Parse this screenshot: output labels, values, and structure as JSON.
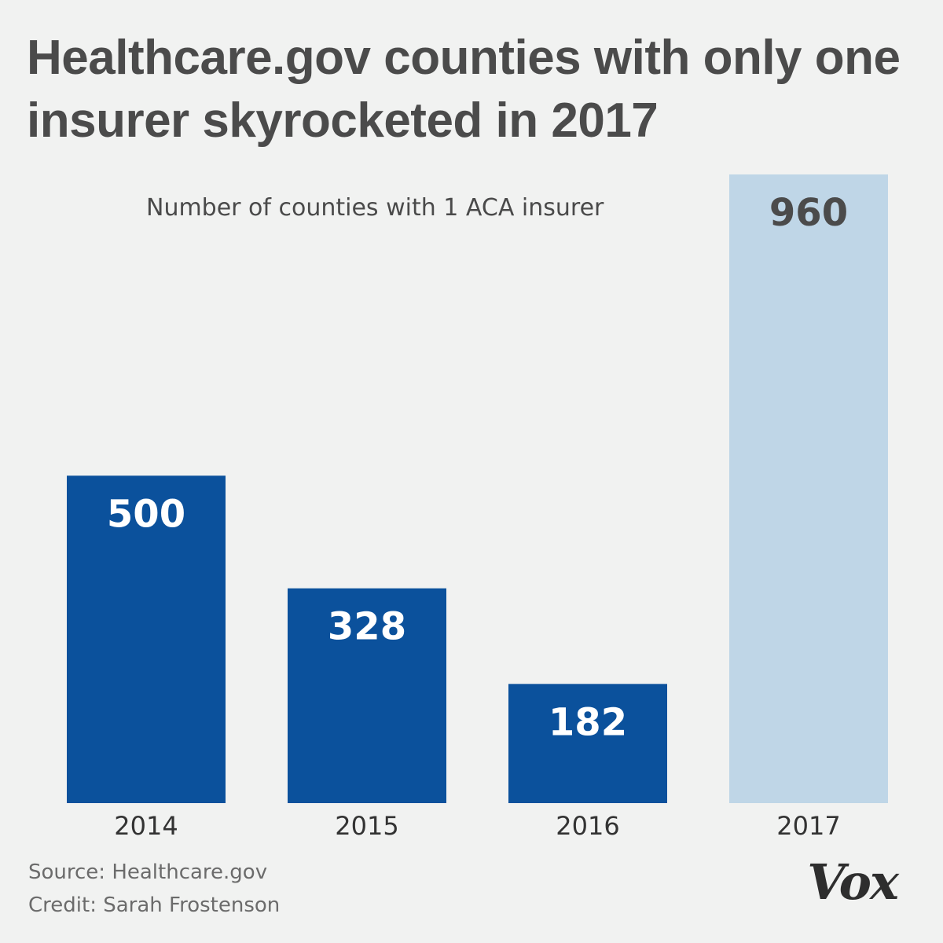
{
  "chart_data": {
    "type": "bar",
    "title": "Healthcare.gov counties with only one insurer skyrocketed in 2017",
    "subtitle": "Number of counties with 1 ACA insurer",
    "categories": [
      "2014",
      "2015",
      "2016",
      "2017"
    ],
    "values": [
      500,
      328,
      182,
      960
    ],
    "colors": [
      "#0b519c",
      "#0b519c",
      "#0b519c",
      "#bfd6e7"
    ],
    "label_colors": [
      "#ffffff",
      "#ffffff",
      "#ffffff",
      "#4b4b4b"
    ],
    "xlabel": "",
    "ylabel": "",
    "ylim": [
      0,
      960
    ],
    "grid": false
  },
  "footer": {
    "source": "Source: Healthcare.gov",
    "credit": "Credit: Sarah Frostenson"
  },
  "logo": {
    "text": "Vox"
  }
}
